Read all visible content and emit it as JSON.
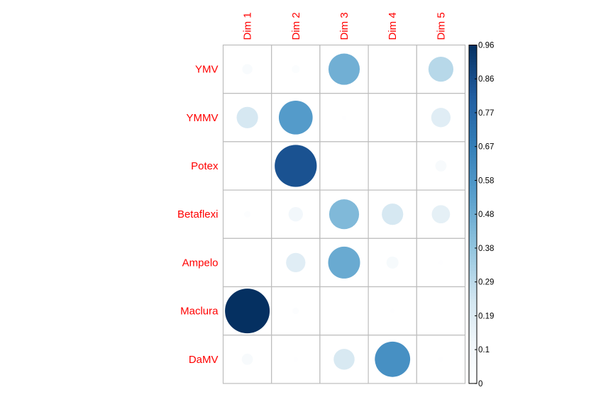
{
  "chart_data": {
    "type": "heatmap",
    "subtype": "correlation-circle-plot",
    "rows": [
      "YMV",
      "YMMV",
      "Potex",
      "Betaflexi",
      "Ampelo",
      "Maclura",
      "DaMV"
    ],
    "columns": [
      "Dim 1",
      "Dim 2",
      "Dim 3",
      "Dim 4",
      "Dim 5"
    ],
    "values": [
      [
        0.05,
        0.03,
        0.47,
        0.0,
        0.3
      ],
      [
        0.22,
        0.55,
        0.01,
        0.0,
        0.18
      ],
      [
        0.0,
        0.85,
        0.0,
        0.0,
        0.06
      ],
      [
        0.02,
        0.1,
        0.43,
        0.22,
        0.16
      ],
      [
        0.0,
        0.18,
        0.49,
        0.07,
        0.01
      ],
      [
        0.96,
        0.02,
        0.0,
        0.01,
        0.0
      ],
      [
        0.06,
        0.01,
        0.21,
        0.6,
        0.01
      ]
    ],
    "colorbar": {
      "min": 0,
      "max": 0.96,
      "ticks": [
        "0",
        "0.1",
        "0.19",
        "0.29",
        "0.38",
        "0.48",
        "0.58",
        "0.67",
        "0.77",
        "0.86",
        "0.96"
      ],
      "low_color": "#ffffff",
      "high_color": "#053061",
      "placement": "right"
    },
    "grid": true,
    "label_color": "#ff0000"
  }
}
